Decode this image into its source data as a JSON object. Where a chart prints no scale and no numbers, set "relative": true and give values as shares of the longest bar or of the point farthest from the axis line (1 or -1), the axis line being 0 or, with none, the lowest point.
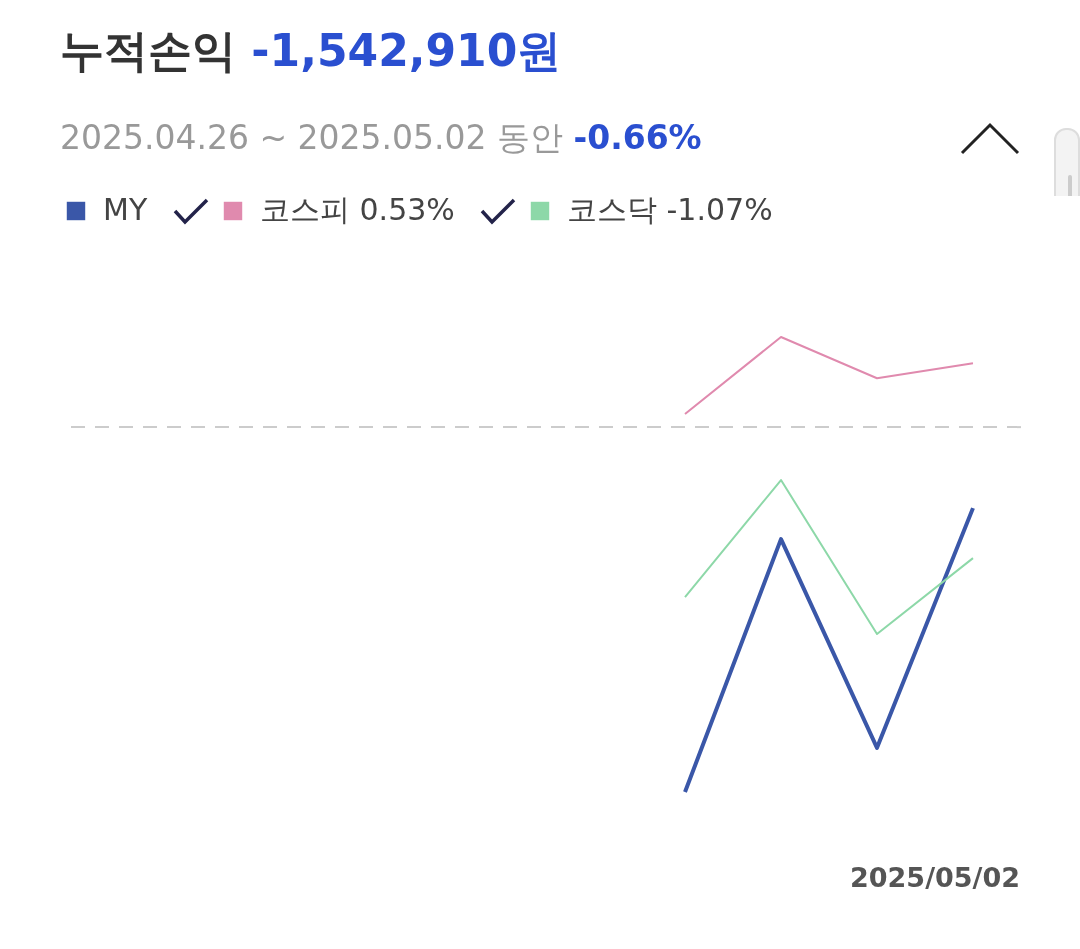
{
  "chart_data": {
    "type": "line",
    "title": "누적손익 -1,542,910원",
    "subtitle": "2025.04.26 ~ 2025.05.02 동안 -0.66%",
    "relative": true,
    "legend": "top",
    "line_style": "solid",
    "categories": [
      null,
      null,
      null,
      null,
      null,
      null,
      null,
      null,
      null,
      null
    ],
    "annotations": [
      "2025/05/02"
    ],
    "series": [
      {
        "name": "MY",
        "color": "#3a57a8",
        "values": [
          null,
          null,
          null,
          null,
          null,
          null,
          -1,
          -0.307,
          -0.879,
          -0.222
        ]
      },
      {
        "name": "코스피 0.53%",
        "color": "#e08aae",
        "values": [
          null,
          null,
          null,
          null,
          null,
          null,
          0.036,
          0.247,
          0.134,
          0.175
        ]
      },
      {
        "name": "코스닥 -1.07%",
        "color": "#8dd8a8",
        "values": [
          null,
          null,
          null,
          null,
          null,
          null,
          -0.466,
          -0.145,
          -0.567,
          -0.359
        ]
      }
    ],
    "ref_lines": [
      {
        "axis": "y",
        "value": 0,
        "color": "#cccccc",
        "line_style": "dashed"
      }
    ]
  }
}
